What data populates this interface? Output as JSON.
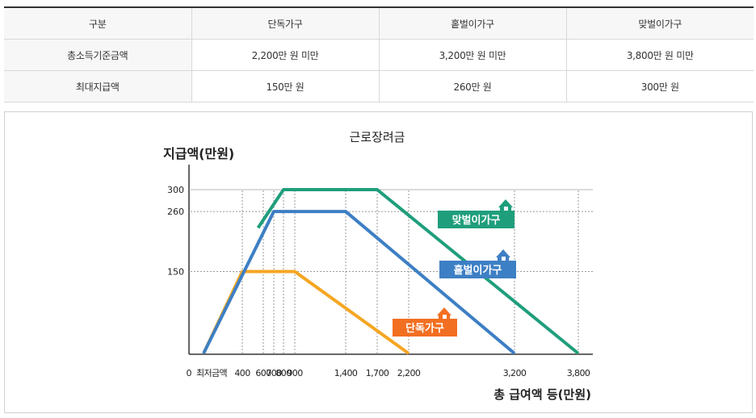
{
  "table": {
    "headers": [
      "구분",
      "단독가구",
      "홑벌이가구",
      "맞벌이가구"
    ],
    "rows": [
      [
        "총소득기준금액",
        "2,200만 원 미만",
        "3,200만 원 미만",
        "3,800만 원 미만"
      ],
      [
        "최대지급액",
        "150만 원",
        "260만 원",
        "300만 원"
      ]
    ]
  },
  "chart_data": {
    "type": "line",
    "title": "근로장려금",
    "ylabel": "지급액(만원)",
    "xlabel": "총 급여액 등(만원)",
    "origin_label": "0",
    "x_tick_labels": [
      {
        "value": 0,
        "label": "최저금액"
      },
      {
        "value": 400,
        "label": "400"
      },
      {
        "value": 600,
        "label": "600"
      },
      {
        "value": 700,
        "label": "700"
      },
      {
        "value": 800,
        "label": "800"
      },
      {
        "value": 900,
        "label": "900"
      },
      {
        "value": 1400,
        "label": "1,400"
      },
      {
        "value": 1700,
        "label": "1,700"
      },
      {
        "value": 2200,
        "label": "2,200"
      },
      {
        "value": 3200,
        "label": "3,200"
      },
      {
        "value": 3800,
        "label": "3,800"
      }
    ],
    "y_ticks": [
      150,
      260,
      300
    ],
    "x_axis_max": 3800,
    "y_axis_max": 300,
    "series": [
      {
        "name": "단독가구",
        "color": "#f5a623",
        "label_color": "#f26f21",
        "points": [
          [
            0,
            0
          ],
          [
            400,
            150
          ],
          [
            900,
            150
          ],
          [
            2200,
            0
          ]
        ]
      },
      {
        "name": "홑벌이가구",
        "color": "#3d7fc4",
        "label_color": "#3d7fc4",
        "points": [
          [
            0,
            0
          ],
          [
            700,
            260
          ],
          [
            1400,
            260
          ],
          [
            3200,
            0
          ]
        ]
      },
      {
        "name": "맞벌이가구",
        "color": "#1f9e7c",
        "label_color": "#1f9e7c",
        "points": [
          [
            550,
            230
          ],
          [
            800,
            300
          ],
          [
            1700,
            300
          ],
          [
            3800,
            0
          ]
        ]
      }
    ]
  }
}
